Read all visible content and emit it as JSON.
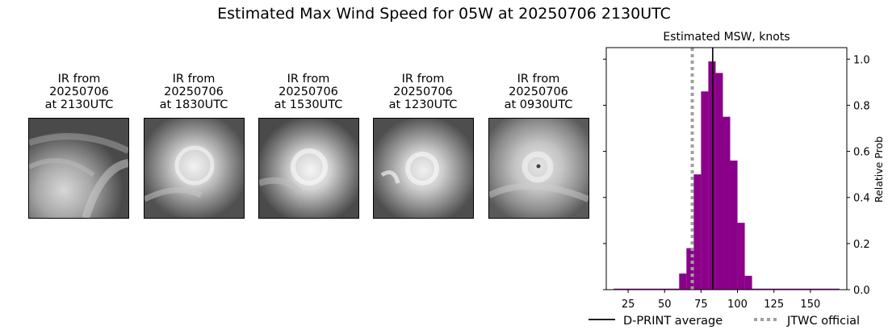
{
  "figure": {
    "title": "Estimated Max Wind Speed for 05W at 20250706 2130UTC"
  },
  "ir_panels": [
    {
      "line1": "IR from",
      "line2": "20250706",
      "line3": "at 2130UTC"
    },
    {
      "line1": "IR from",
      "line2": "20250706",
      "line3": "at 1830UTC"
    },
    {
      "line1": "IR from",
      "line2": "20250706",
      "line3": "at 1530UTC"
    },
    {
      "line1": "IR from",
      "line2": "20250706",
      "line3": "at 1230UTC"
    },
    {
      "line1": "IR from",
      "line2": "20250706",
      "line3": "at 0930UTC"
    }
  ],
  "chart_data": {
    "type": "bar",
    "title": "Estimated MSW, knots",
    "xlabel": "",
    "ylabel": "Relative Prob",
    "xlim": [
      10,
      175
    ],
    "ylim": [
      0,
      1.05
    ],
    "x_ticks": [
      25,
      50,
      75,
      100,
      125,
      150
    ],
    "y_ticks": [
      0.0,
      0.2,
      0.4,
      0.6,
      0.8,
      1.0
    ],
    "y_tick_labels": [
      "0.0",
      "0.2",
      "0.4",
      "0.6",
      "0.8",
      "1.0"
    ],
    "bin_width": 5,
    "bins": [
      {
        "x": 62.5,
        "value": 0.07
      },
      {
        "x": 67.5,
        "value": 0.18
      },
      {
        "x": 72.5,
        "value": 0.5
      },
      {
        "x": 77.5,
        "value": 0.86
      },
      {
        "x": 82.5,
        "value": 0.99
      },
      {
        "x": 87.5,
        "value": 0.94
      },
      {
        "x": 92.5,
        "value": 0.75
      },
      {
        "x": 97.5,
        "value": 0.56
      },
      {
        "x": 102.5,
        "value": 0.29
      },
      {
        "x": 107.5,
        "value": 0.06
      }
    ],
    "baseline_range": [
      15,
      170
    ],
    "dprint_average": 83,
    "jtwc_official": 69,
    "bar_color": "#8b0089",
    "dprint_color": "#000000",
    "jtwc_color": "#a0a0a0",
    "legend": [
      {
        "label": "D-PRINT average",
        "style": "solid"
      },
      {
        "label": "JTWC official",
        "style": "dotted"
      }
    ],
    "legend_position": "bottom-right"
  }
}
